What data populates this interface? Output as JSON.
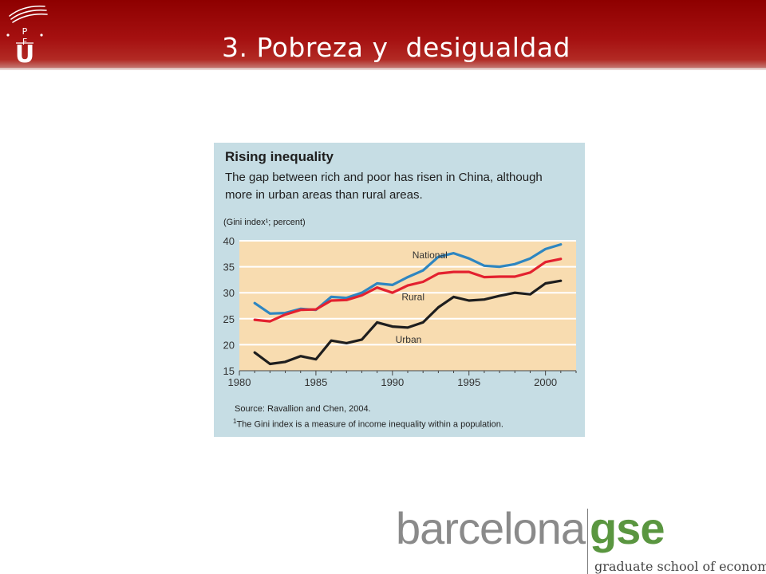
{
  "slide": {
    "title": "3. Pobreza y  desigualdad"
  },
  "logo": {
    "letters": [
      "P",
      "F",
      "U"
    ],
    "icon": "upf-university-logo"
  },
  "chart_data": {
    "type": "line",
    "title": "Rising inequality",
    "subtitle_lines": [
      "The gap between rich and poor has risen in China, although",
      "more in urban areas than rural areas."
    ],
    "unit_label": "(Gini index¹; percent)",
    "xlim": [
      1980,
      2002
    ],
    "ylim": [
      15,
      40
    ],
    "x_ticks": [
      1980,
      1985,
      1990,
      1995,
      2000
    ],
    "y_ticks": [
      15,
      20,
      25,
      30,
      35,
      40
    ],
    "grid": true,
    "x": [
      1981,
      1982,
      1983,
      1984,
      1985,
      1986,
      1987,
      1988,
      1989,
      1990,
      1991,
      1992,
      1993,
      1994,
      1995,
      1996,
      1997,
      1998,
      1999,
      2000,
      2001
    ],
    "series": [
      {
        "name": "National",
        "color": "#2e86c1",
        "values": [
          28.0,
          26.0,
          26.1,
          26.9,
          26.7,
          29.2,
          29.0,
          30.0,
          31.8,
          31.5,
          33.0,
          34.3,
          36.9,
          37.6,
          36.6,
          35.2,
          35.0,
          35.5,
          36.6,
          38.4,
          39.3
        ]
      },
      {
        "name": "Rural",
        "color": "#e3212f",
        "values": [
          24.8,
          24.5,
          25.8,
          26.7,
          26.8,
          28.5,
          28.6,
          29.5,
          31.0,
          30.0,
          31.4,
          32.1,
          33.7,
          34.0,
          34.0,
          33.0,
          33.1,
          33.1,
          33.9,
          35.9,
          36.5
        ]
      },
      {
        "name": "Urban",
        "color": "#1e1e1e",
        "values": [
          18.5,
          16.3,
          16.7,
          17.8,
          17.2,
          20.8,
          20.3,
          21.0,
          24.3,
          23.5,
          23.3,
          24.3,
          27.2,
          29.2,
          28.5,
          28.7,
          29.4,
          30.0,
          29.7,
          31.8,
          32.3
        ]
      }
    ],
    "series_label_positions": [
      {
        "name": "National",
        "x": 1991.3,
        "y": 36.6
      },
      {
        "name": "Rural",
        "x": 1990.6,
        "y": 28.6
      },
      {
        "name": "Urban",
        "x": 1990.2,
        "y": 20.4
      }
    ],
    "source": "Source: Ravallion and Chen, 2004.",
    "footnote_marker": "1",
    "footnote": "The Gini index is a measure of income inequality within a population.",
    "colors": {
      "panel": "#c6dde4",
      "plot_area": "#f8dcb0",
      "gridline": "#ffffff",
      "tick_label": "#333333"
    }
  },
  "bgse_logo": {
    "word_gray": "barcelona",
    "word_green": "gse",
    "tagline": "graduate school of economics"
  }
}
